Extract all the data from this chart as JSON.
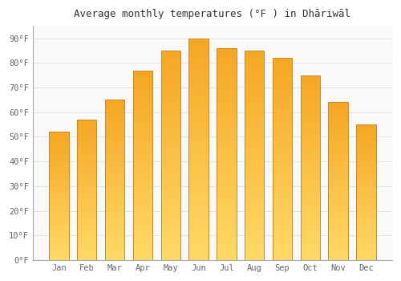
{
  "months": [
    "Jan",
    "Feb",
    "Mar",
    "Apr",
    "May",
    "Jun",
    "Jul",
    "Aug",
    "Sep",
    "Oct",
    "Nov",
    "Dec"
  ],
  "values": [
    52,
    57,
    65,
    77,
    85,
    90,
    86,
    85,
    82,
    75,
    64,
    55
  ],
  "bar_color_top": "#F5A623",
  "bar_color_bottom": "#FFD966",
  "bar_edge_color": "#C8882A",
  "title": "Average monthly temperatures (°F ) in Dhāriwāl",
  "ylim": [
    0,
    95
  ],
  "yticks": [
    0,
    10,
    20,
    30,
    40,
    50,
    60,
    70,
    80,
    90
  ],
  "ytick_labels": [
    "0°F",
    "10°F",
    "20°F",
    "30°F",
    "40°F",
    "50°F",
    "60°F",
    "70°F",
    "80°F",
    "90°F"
  ],
  "background_color": "#ffffff",
  "plot_bg_color": "#f9f9f9",
  "grid_color": "#dddddd",
  "title_fontsize": 9,
  "tick_fontsize": 7.5,
  "tick_color": "#666666",
  "title_color": "#333333",
  "bar_width": 0.7
}
